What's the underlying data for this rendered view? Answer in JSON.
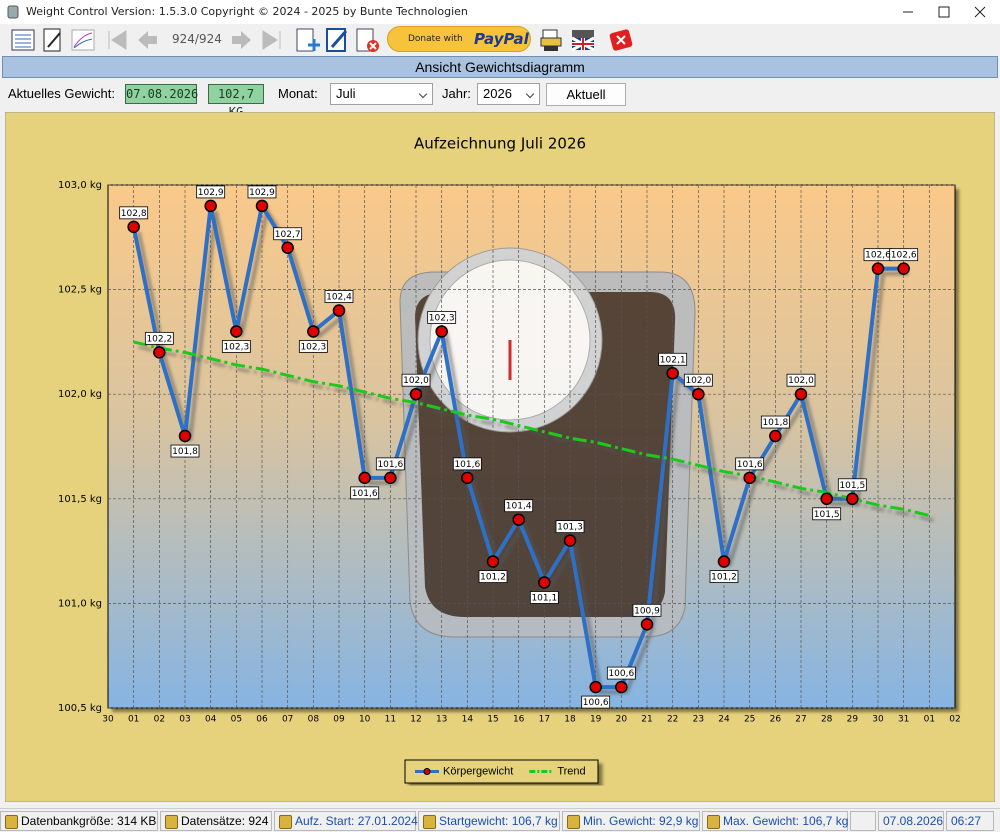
{
  "window": {
    "title": "Weight Control Version: 1.5.3.0 Copyright ©  2024 - 2025 by Bunte Technologien"
  },
  "toolbar": {
    "record_counter": "924/924",
    "donate_prefix": "Donate with",
    "donate_brand": "PayPal"
  },
  "header": {
    "title": "Ansicht Gewichtsdiagramm"
  },
  "controls": {
    "current_weight_label": "Aktuelles Gewicht:",
    "current_date": "07.08.2026",
    "current_weight": "102,7 KG",
    "month_label": "Monat:",
    "month": "Juli",
    "year_label": "Jahr:",
    "year": "2026",
    "refresh_button": "Aktuell"
  },
  "chart_data": {
    "type": "line",
    "title": "Aufzeichnung Juli 2026",
    "categories": [
      "30",
      "01",
      "02",
      "03",
      "04",
      "05",
      "06",
      "07",
      "08",
      "09",
      "10",
      "11",
      "12",
      "13",
      "14",
      "15",
      "16",
      "17",
      "18",
      "19",
      "20",
      "21",
      "22",
      "23",
      "24",
      "25",
      "26",
      "27",
      "28",
      "29",
      "30",
      "31",
      "01",
      "02"
    ],
    "series": [
      {
        "name": "Körpergewicht",
        "color": "#2f6fc5",
        "marker_color": "#e00000",
        "values": [
          null,
          102.8,
          102.2,
          101.8,
          102.9,
          102.3,
          102.9,
          102.7,
          102.3,
          102.4,
          101.6,
          101.6,
          102.0,
          102.3,
          101.6,
          101.2,
          101.4,
          101.1,
          101.3,
          100.6,
          100.6,
          100.9,
          102.1,
          102.0,
          101.2,
          101.6,
          101.8,
          102.0,
          101.5,
          101.5,
          102.6,
          102.6,
          null,
          null
        ],
        "value_labels": [
          null,
          "102,8",
          "102,2",
          "101,8",
          "102,9",
          "102,3",
          "102,9",
          "102,7",
          "102,3",
          "102,4",
          "101,6",
          "101,6",
          "102,0",
          "102,3",
          "101,6",
          "101,2",
          "101,4",
          "101,1",
          "101,3",
          "100,6",
          "100,6",
          "100,9",
          "102,1",
          "102,0",
          "101,2",
          "101,6",
          "101,8",
          "102,0",
          "101,5",
          "101,5",
          "102,6",
          "102,6",
          null,
          null
        ]
      },
      {
        "name": "Trend",
        "color": "#1ec81e",
        "values": [
          null,
          102.25,
          102.22,
          102.2,
          102.17,
          102.14,
          102.12,
          102.09,
          102.06,
          102.04,
          102.01,
          101.98,
          101.96,
          101.93,
          101.9,
          101.88,
          101.85,
          101.82,
          101.79,
          101.77,
          101.74,
          101.71,
          101.69,
          101.66,
          101.63,
          101.61,
          101.58,
          101.55,
          101.53,
          101.5,
          101.47,
          101.45,
          101.42,
          null
        ]
      }
    ],
    "ylim": [
      100.5,
      103.0
    ],
    "yticks": [
      {
        "value": 100.5,
        "label": "100,5 kg"
      },
      {
        "value": 101.0,
        "label": "101,0 kg"
      },
      {
        "value": 101.5,
        "label": "101,5 kg"
      },
      {
        "value": 102.0,
        "label": "102,0 kg"
      },
      {
        "value": 102.5,
        "label": "102,5 kg"
      },
      {
        "value": 103.0,
        "label": "103,0 kg"
      }
    ],
    "grid": true,
    "legend": "bottom"
  },
  "status_bar": {
    "items": [
      "Datenbankgröße: 314 KB",
      "Datensätze: 924",
      "Aufz. Start: 27.01.2024",
      "Startgewicht: 106,7 kg",
      "Min. Gewicht: 92,9 kg",
      "Max. Gewicht: 106,7 kg",
      "07.08.2026",
      "06:27"
    ]
  }
}
